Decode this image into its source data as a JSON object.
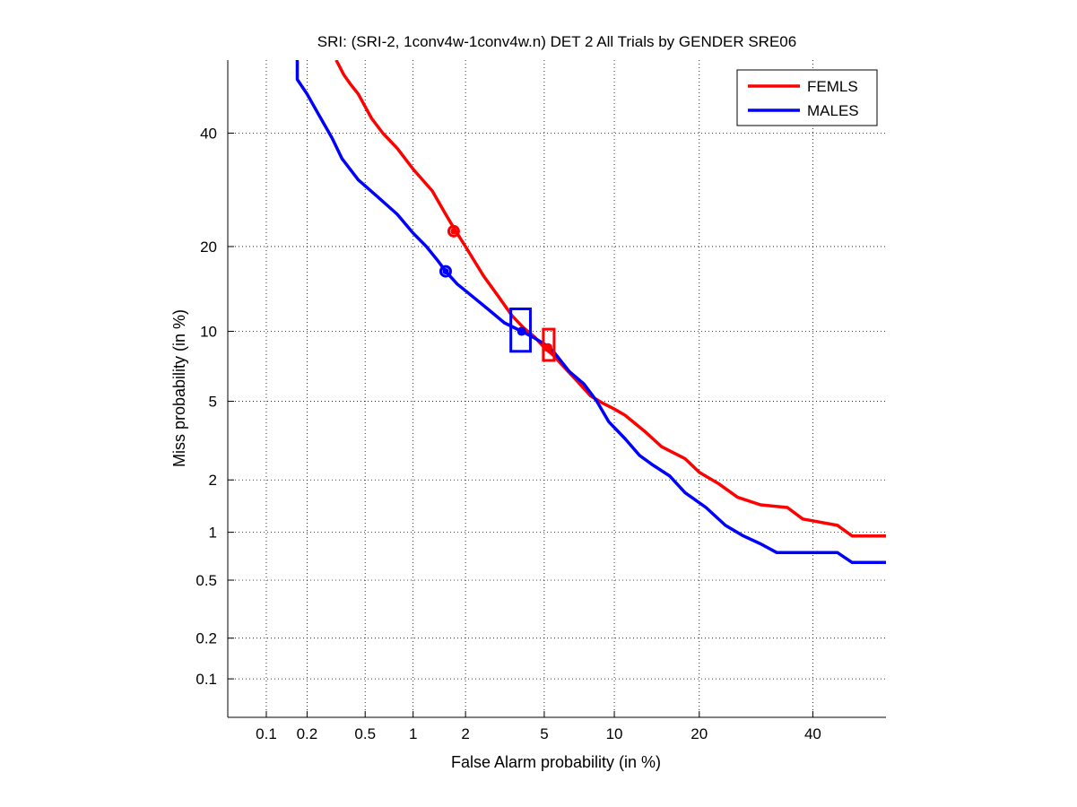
{
  "chart_data": {
    "type": "line",
    "title": "SRI: (SRI-2, 1conv4w-1conv4w.n) DET 2 All Trials by GENDER SRE06",
    "xlabel": "False Alarm probability (in %)",
    "ylabel": "Miss probability (in %)",
    "scale": "probit (normal deviate)",
    "xlim": [
      0.05,
      55
    ],
    "ylim": [
      0.05,
      55
    ],
    "grid": true,
    "legend_position": "top-right",
    "x_ticks": [
      0.1,
      0.2,
      0.5,
      1,
      2,
      5,
      10,
      20,
      40
    ],
    "x_tick_labels": [
      "0.1",
      "0.2",
      "0.5",
      "1",
      "2",
      "5",
      "10",
      "20",
      "40"
    ],
    "y_ticks": [
      0.1,
      0.2,
      0.5,
      1,
      2,
      5,
      10,
      20,
      40
    ],
    "y_tick_labels": [
      "0.1",
      "0.2",
      "0.5",
      "1",
      "2",
      "5",
      "10",
      "20",
      "40"
    ],
    "series": [
      {
        "name": "FEMLS",
        "color": "#ff0000",
        "points": [
          [
            0.32,
            55
          ],
          [
            0.36,
            52
          ],
          [
            0.4,
            50
          ],
          [
            0.45,
            48
          ],
          [
            0.55,
            43
          ],
          [
            0.65,
            40
          ],
          [
            0.8,
            37
          ],
          [
            1.0,
            33
          ],
          [
            1.3,
            29
          ],
          [
            1.55,
            25
          ],
          [
            1.75,
            22.5
          ],
          [
            2.0,
            20
          ],
          [
            2.5,
            16
          ],
          [
            3.0,
            13.5
          ],
          [
            3.5,
            11.5
          ],
          [
            4.0,
            10.3
          ],
          [
            4.5,
            9.5
          ],
          [
            5.0,
            8.6
          ],
          [
            5.5,
            8.0
          ],
          [
            6.0,
            7.3
          ],
          [
            7.0,
            6.2
          ],
          [
            8.0,
            5.3
          ],
          [
            9.0,
            4.9
          ],
          [
            10.0,
            4.6
          ],
          [
            11.0,
            4.3
          ],
          [
            13.0,
            3.6
          ],
          [
            15.0,
            3.0
          ],
          [
            18.0,
            2.6
          ],
          [
            20.0,
            2.2
          ],
          [
            23.0,
            1.9
          ],
          [
            26.0,
            1.6
          ],
          [
            30.0,
            1.45
          ],
          [
            35.0,
            1.4
          ],
          [
            38.0,
            1.2
          ],
          [
            45.0,
            1.1
          ],
          [
            48.0,
            0.95
          ],
          [
            55.0,
            0.95
          ]
        ]
      },
      {
        "name": "MALES",
        "color": "#0000ff",
        "points": [
          [
            0.17,
            55
          ],
          [
            0.17,
            51
          ],
          [
            0.2,
            48
          ],
          [
            0.25,
            43
          ],
          [
            0.3,
            39
          ],
          [
            0.35,
            35
          ],
          [
            0.45,
            31
          ],
          [
            0.6,
            28
          ],
          [
            0.8,
            25
          ],
          [
            1.0,
            22
          ],
          [
            1.2,
            20
          ],
          [
            1.4,
            18
          ],
          [
            1.55,
            16.6
          ],
          [
            1.8,
            15
          ],
          [
            2.2,
            13.5
          ],
          [
            2.7,
            12
          ],
          [
            3.2,
            10.8
          ],
          [
            3.9,
            10.0
          ],
          [
            4.5,
            9.4
          ],
          [
            5.0,
            8.9
          ],
          [
            5.5,
            8.3
          ],
          [
            6.5,
            6.8
          ],
          [
            7.5,
            6.0
          ],
          [
            8.5,
            5.0
          ],
          [
            9.5,
            4.0
          ],
          [
            11.0,
            3.3
          ],
          [
            12.5,
            2.7
          ],
          [
            14.0,
            2.4
          ],
          [
            16.0,
            2.1
          ],
          [
            18.0,
            1.7
          ],
          [
            21.0,
            1.4
          ],
          [
            24.0,
            1.1
          ],
          [
            27.0,
            0.95
          ],
          [
            30.0,
            0.85
          ],
          [
            33.0,
            0.75
          ],
          [
            45.0,
            0.75
          ],
          [
            48.0,
            0.65
          ],
          [
            55.0,
            0.65
          ]
        ]
      }
    ],
    "markers": [
      {
        "series": "FEMLS",
        "type": "circle",
        "x": 1.72,
        "y": 22.3
      },
      {
        "series": "FEMLS",
        "type": "rectangle",
        "x_range": [
          4.95,
          5.55
        ],
        "y_range": [
          7.6,
          10.2
        ],
        "dot": [
          5.2,
          8.6
        ]
      },
      {
        "series": "MALES",
        "type": "circle",
        "x": 1.55,
        "y": 16.6
      },
      {
        "series": "MALES",
        "type": "rectangle",
        "x_range": [
          3.45,
          4.3
        ],
        "y_range": [
          8.3,
          12.2
        ],
        "dot": [
          3.9,
          10.0
        ]
      }
    ],
    "legend": [
      {
        "label": "FEMLS",
        "color": "#ff0000"
      },
      {
        "label": "MALES",
        "color": "#0000ff"
      }
    ]
  }
}
